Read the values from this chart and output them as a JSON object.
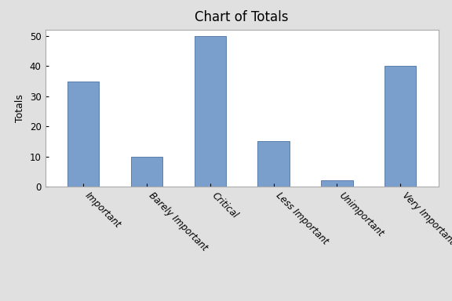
{
  "title": "Chart of Totals",
  "categories": [
    "Important",
    "Barely Important",
    "Critical",
    "Less Important",
    "Unimportant",
    "Very Important"
  ],
  "values": [
    35,
    10,
    50,
    15,
    2,
    40
  ],
  "bar_color": "#7B9FCC",
  "bar_edgecolor": "#5a7faa",
  "ylabel": "Totals",
  "ylim": [
    0,
    52
  ],
  "yticks": [
    0,
    10,
    20,
    30,
    40,
    50
  ],
  "background_color": "#e0e0e0",
  "plot_bg_color": "#ffffff",
  "title_fontsize": 12,
  "label_fontsize": 9,
  "tick_fontsize": 8.5,
  "bar_width": 0.5
}
